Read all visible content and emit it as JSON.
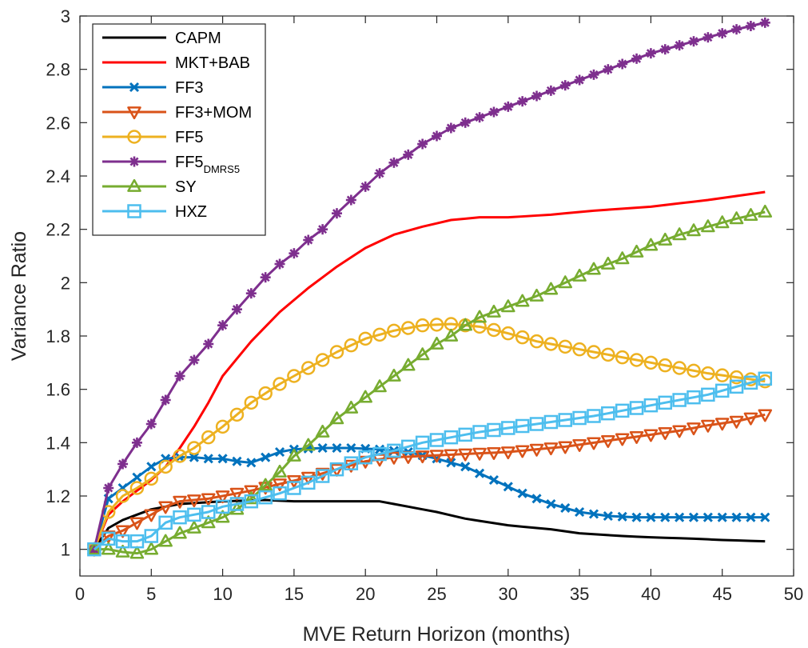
{
  "chart_data": {
    "type": "line",
    "xlabel": "MVE Return Horizon (months)",
    "ylabel": "Variance Ratio",
    "xlim": [
      0,
      50
    ],
    "ylim": [
      0.9,
      3
    ],
    "x_ticks": [
      0,
      5,
      10,
      15,
      20,
      25,
      30,
      35,
      40,
      45,
      50
    ],
    "y_ticks": [
      1,
      1.2,
      1.4,
      1.6,
      1.8,
      2,
      2.2,
      2.4,
      2.6,
      2.8,
      3
    ],
    "x_tick_labels": [
      "0",
      "5",
      "10",
      "15",
      "20",
      "25",
      "30",
      "35",
      "40",
      "45",
      "50"
    ],
    "y_tick_labels": [
      "1",
      "1.2",
      "1.4",
      "1.6",
      "1.8",
      "2",
      "2.2",
      "2.4",
      "2.6",
      "2.8",
      "3"
    ],
    "legend_position": "top-left",
    "grid": false,
    "x_values": "integers 1 through 48",
    "series": [
      {
        "name": "CAPM",
        "name_sub": "",
        "color": "#000000",
        "marker": "none",
        "anchors": [
          [
            1,
            1.0
          ],
          [
            2,
            1.08
          ],
          [
            3,
            1.11
          ],
          [
            5,
            1.15
          ],
          [
            7,
            1.17
          ],
          [
            10,
            1.18
          ],
          [
            13,
            1.185
          ],
          [
            15,
            1.18
          ],
          [
            17,
            1.18
          ],
          [
            19,
            1.18
          ],
          [
            21,
            1.18
          ],
          [
            23,
            1.16
          ],
          [
            25,
            1.14
          ],
          [
            27,
            1.115
          ],
          [
            30,
            1.09
          ],
          [
            33,
            1.075
          ],
          [
            35,
            1.06
          ],
          [
            38,
            1.05
          ],
          [
            40,
            1.045
          ],
          [
            43,
            1.04
          ],
          [
            45,
            1.035
          ],
          [
            48,
            1.03
          ]
        ]
      },
      {
        "name": "MKT+BAB",
        "name_sub": "",
        "color": "#ff0000",
        "marker": "none",
        "anchors": [
          [
            1,
            1.0
          ],
          [
            2,
            1.13
          ],
          [
            3,
            1.18
          ],
          [
            4,
            1.22
          ],
          [
            5,
            1.26
          ],
          [
            6,
            1.31
          ],
          [
            7,
            1.38
          ],
          [
            8,
            1.46
          ],
          [
            9,
            1.55
          ],
          [
            10,
            1.65
          ],
          [
            12,
            1.78
          ],
          [
            14,
            1.89
          ],
          [
            16,
            1.98
          ],
          [
            18,
            2.06
          ],
          [
            20,
            2.13
          ],
          [
            22,
            2.18
          ],
          [
            24,
            2.21
          ],
          [
            26,
            2.235
          ],
          [
            28,
            2.245
          ],
          [
            30,
            2.245
          ],
          [
            33,
            2.255
          ],
          [
            36,
            2.27
          ],
          [
            40,
            2.285
          ],
          [
            44,
            2.31
          ],
          [
            48,
            2.34
          ]
        ]
      },
      {
        "name": "FF3",
        "name_sub": "",
        "color": "#0072bd",
        "marker": "x",
        "anchors": [
          [
            1,
            1.0
          ],
          [
            2,
            1.19
          ],
          [
            3,
            1.23
          ],
          [
            4,
            1.27
          ],
          [
            5,
            1.31
          ],
          [
            6,
            1.34
          ],
          [
            7,
            1.345
          ],
          [
            8,
            1.345
          ],
          [
            9,
            1.34
          ],
          [
            10,
            1.34
          ],
          [
            11,
            1.33
          ],
          [
            12,
            1.325
          ],
          [
            13,
            1.345
          ],
          [
            14,
            1.365
          ],
          [
            15,
            1.375
          ],
          [
            17,
            1.38
          ],
          [
            19,
            1.38
          ],
          [
            21,
            1.375
          ],
          [
            23,
            1.365
          ],
          [
            25,
            1.34
          ],
          [
            27,
            1.31
          ],
          [
            29,
            1.26
          ],
          [
            31,
            1.21
          ],
          [
            33,
            1.17
          ],
          [
            35,
            1.14
          ],
          [
            37,
            1.125
          ],
          [
            39,
            1.12
          ],
          [
            41,
            1.12
          ],
          [
            43,
            1.12
          ],
          [
            45,
            1.12
          ],
          [
            48,
            1.12
          ]
        ]
      },
      {
        "name": "FF3+MOM",
        "name_sub": "",
        "color": "#d95319",
        "marker": "triangle-down",
        "anchors": [
          [
            1,
            1.0
          ],
          [
            2,
            1.05
          ],
          [
            3,
            1.07
          ],
          [
            4,
            1.1
          ],
          [
            5,
            1.13
          ],
          [
            6,
            1.16
          ],
          [
            7,
            1.18
          ],
          [
            8,
            1.185
          ],
          [
            9,
            1.19
          ],
          [
            10,
            1.2
          ],
          [
            12,
            1.22
          ],
          [
            14,
            1.245
          ],
          [
            16,
            1.27
          ],
          [
            18,
            1.3
          ],
          [
            20,
            1.33
          ],
          [
            22,
            1.345
          ],
          [
            24,
            1.35
          ],
          [
            26,
            1.355
          ],
          [
            28,
            1.36
          ],
          [
            30,
            1.365
          ],
          [
            32,
            1.375
          ],
          [
            34,
            1.385
          ],
          [
            36,
            1.4
          ],
          [
            38,
            1.415
          ],
          [
            40,
            1.43
          ],
          [
            42,
            1.445
          ],
          [
            44,
            1.465
          ],
          [
            46,
            1.48
          ],
          [
            48,
            1.505
          ]
        ]
      },
      {
        "name": "FF5",
        "name_sub": "",
        "color": "#edb120",
        "marker": "circle",
        "anchors": [
          [
            1,
            1.0
          ],
          [
            2,
            1.14
          ],
          [
            3,
            1.2
          ],
          [
            4,
            1.23
          ],
          [
            5,
            1.265
          ],
          [
            6,
            1.31
          ],
          [
            7,
            1.35
          ],
          [
            8,
            1.38
          ],
          [
            10,
            1.46
          ],
          [
            12,
            1.55
          ],
          [
            14,
            1.62
          ],
          [
            16,
            1.68
          ],
          [
            18,
            1.74
          ],
          [
            20,
            1.79
          ],
          [
            22,
            1.82
          ],
          [
            24,
            1.84
          ],
          [
            26,
            1.845
          ],
          [
            27,
            1.84
          ],
          [
            28,
            1.835
          ],
          [
            30,
            1.81
          ],
          [
            32,
            1.78
          ],
          [
            34,
            1.76
          ],
          [
            36,
            1.74
          ],
          [
            38,
            1.72
          ],
          [
            40,
            1.7
          ],
          [
            42,
            1.68
          ],
          [
            44,
            1.66
          ],
          [
            46,
            1.645
          ],
          [
            48,
            1.63
          ]
        ]
      },
      {
        "name": "FF5",
        "name_sub": "DMRS5",
        "color": "#7e2f8e",
        "marker": "asterisk",
        "anchors": [
          [
            1,
            1.0
          ],
          [
            2,
            1.23
          ],
          [
            3,
            1.32
          ],
          [
            4,
            1.4
          ],
          [
            5,
            1.47
          ],
          [
            6,
            1.56
          ],
          [
            7,
            1.65
          ],
          [
            8,
            1.71
          ],
          [
            9,
            1.77
          ],
          [
            10,
            1.84
          ],
          [
            11,
            1.9
          ],
          [
            12,
            1.96
          ],
          [
            13,
            2.02
          ],
          [
            14,
            2.07
          ],
          [
            15,
            2.11
          ],
          [
            16,
            2.16
          ],
          [
            17,
            2.2
          ],
          [
            18,
            2.26
          ],
          [
            19,
            2.31
          ],
          [
            20,
            2.36
          ],
          [
            21,
            2.41
          ],
          [
            22,
            2.45
          ],
          [
            23,
            2.48
          ],
          [
            24,
            2.52
          ],
          [
            25,
            2.55
          ],
          [
            26,
            2.58
          ],
          [
            27,
            2.6
          ],
          [
            28,
            2.62
          ],
          [
            29,
            2.64
          ],
          [
            30,
            2.66
          ],
          [
            32,
            2.7
          ],
          [
            34,
            2.74
          ],
          [
            36,
            2.78
          ],
          [
            38,
            2.82
          ],
          [
            40,
            2.86
          ],
          [
            42,
            2.89
          ],
          [
            44,
            2.92
          ],
          [
            46,
            2.95
          ],
          [
            48,
            2.975
          ]
        ]
      },
      {
        "name": "SY",
        "name_sub": "",
        "color": "#77ac30",
        "marker": "triangle-up",
        "anchors": [
          [
            1,
            1.0
          ],
          [
            2,
            1.0
          ],
          [
            3,
            0.99
          ],
          [
            4,
            0.985
          ],
          [
            5,
            1.0
          ],
          [
            6,
            1.03
          ],
          [
            7,
            1.06
          ],
          [
            8,
            1.08
          ],
          [
            9,
            1.1
          ],
          [
            10,
            1.12
          ],
          [
            11,
            1.15
          ],
          [
            12,
            1.19
          ],
          [
            13,
            1.24
          ],
          [
            14,
            1.29
          ],
          [
            15,
            1.35
          ],
          [
            16,
            1.39
          ],
          [
            17,
            1.44
          ],
          [
            18,
            1.49
          ],
          [
            19,
            1.53
          ],
          [
            20,
            1.57
          ],
          [
            21,
            1.61
          ],
          [
            22,
            1.65
          ],
          [
            23,
            1.69
          ],
          [
            24,
            1.73
          ],
          [
            25,
            1.77
          ],
          [
            26,
            1.8
          ],
          [
            27,
            1.84
          ],
          [
            28,
            1.87
          ],
          [
            29,
            1.89
          ],
          [
            30,
            1.91
          ],
          [
            32,
            1.95
          ],
          [
            34,
            2.0
          ],
          [
            36,
            2.05
          ],
          [
            38,
            2.09
          ],
          [
            40,
            2.14
          ],
          [
            42,
            2.18
          ],
          [
            44,
            2.21
          ],
          [
            46,
            2.24
          ],
          [
            48,
            2.265
          ]
        ]
      },
      {
        "name": "HXZ",
        "name_sub": "",
        "color": "#4dbeee",
        "marker": "square",
        "anchors": [
          [
            1,
            1.0
          ],
          [
            2,
            1.04
          ],
          [
            3,
            1.03
          ],
          [
            4,
            1.03
          ],
          [
            5,
            1.05
          ],
          [
            6,
            1.1
          ],
          [
            7,
            1.12
          ],
          [
            8,
            1.13
          ],
          [
            9,
            1.14
          ],
          [
            10,
            1.16
          ],
          [
            12,
            1.18
          ],
          [
            14,
            1.21
          ],
          [
            16,
            1.25
          ],
          [
            18,
            1.3
          ],
          [
            20,
            1.345
          ],
          [
            22,
            1.37
          ],
          [
            24,
            1.4
          ],
          [
            26,
            1.42
          ],
          [
            28,
            1.44
          ],
          [
            30,
            1.455
          ],
          [
            32,
            1.47
          ],
          [
            34,
            1.485
          ],
          [
            36,
            1.5
          ],
          [
            38,
            1.52
          ],
          [
            40,
            1.54
          ],
          [
            42,
            1.56
          ],
          [
            44,
            1.58
          ],
          [
            46,
            1.61
          ],
          [
            48,
            1.64
          ]
        ]
      }
    ]
  }
}
